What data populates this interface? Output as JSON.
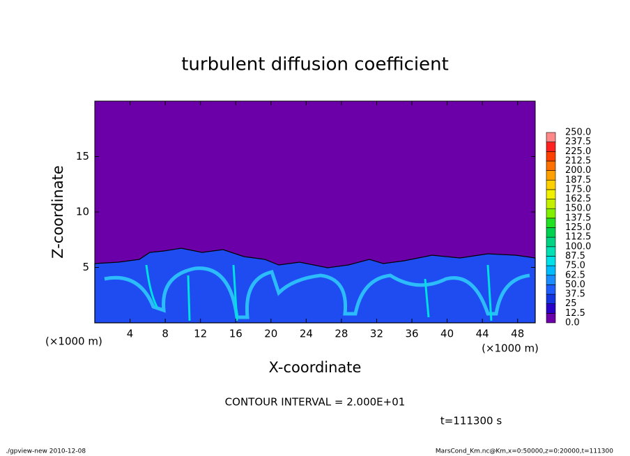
{
  "chart_data": {
    "type": "contour",
    "title": "turbulent diffusion coefficient",
    "x_label": "X-coordinate",
    "y_label": "Z-coordinate",
    "x_unit": "(×1000 m)",
    "x_unit_right": "(×1000 m)",
    "contour_interval": "CONTOUR INTERVAL = 2.000E+01",
    "time_label": "t=111300 s",
    "footer_left": "./gpview-new  2010-12-08",
    "footer_right": "MarsCond_Km.nc@Km,x=0:50000,z=0:20000,t=111300",
    "xlim": [
      0,
      50
    ],
    "xticks": [
      4,
      8,
      12,
      16,
      20,
      24,
      28,
      32,
      36,
      40,
      44,
      48
    ],
    "ylim": [
      0,
      20
    ],
    "yticks": [
      5,
      10,
      15
    ],
    "colorbar_levels": [
      {
        "value": 0,
        "label": "0.0"
      },
      12.5,
      25,
      37.5,
      {
        "value": 50,
        "label": "50.0"
      },
      62.5,
      {
        "value": 75,
        "label": "75.0"
      },
      87.5,
      {
        "value": 100,
        "label": "100.0"
      },
      112.5,
      {
        "value": 125,
        "label": "125.0"
      },
      137.5,
      {
        "value": 150,
        "label": "150.0"
      },
      162.5,
      {
        "value": 175,
        "label": "175.0"
      },
      187.5,
      {
        "value": 200,
        "label": "200.0"
      },
      212.5,
      {
        "value": 225,
        "label": "225.0"
      },
      237.5,
      {
        "value": 250,
        "label": "250.0"
      }
    ],
    "colorbar_colors": [
      "#6c00a8",
      "#2800c8",
      "#1434e0",
      "#1e5cff",
      "#1a8cff",
      "#00bcff",
      "#00e0e8",
      "#00e0b4",
      "#00d484",
      "#00d050",
      "#22e022",
      "#80f000",
      "#c4f000",
      "#f0f000",
      "#ffd000",
      "#ffa000",
      "#ff7000",
      "#ff4000",
      "#ff2020",
      "#ff8888"
    ]
  }
}
